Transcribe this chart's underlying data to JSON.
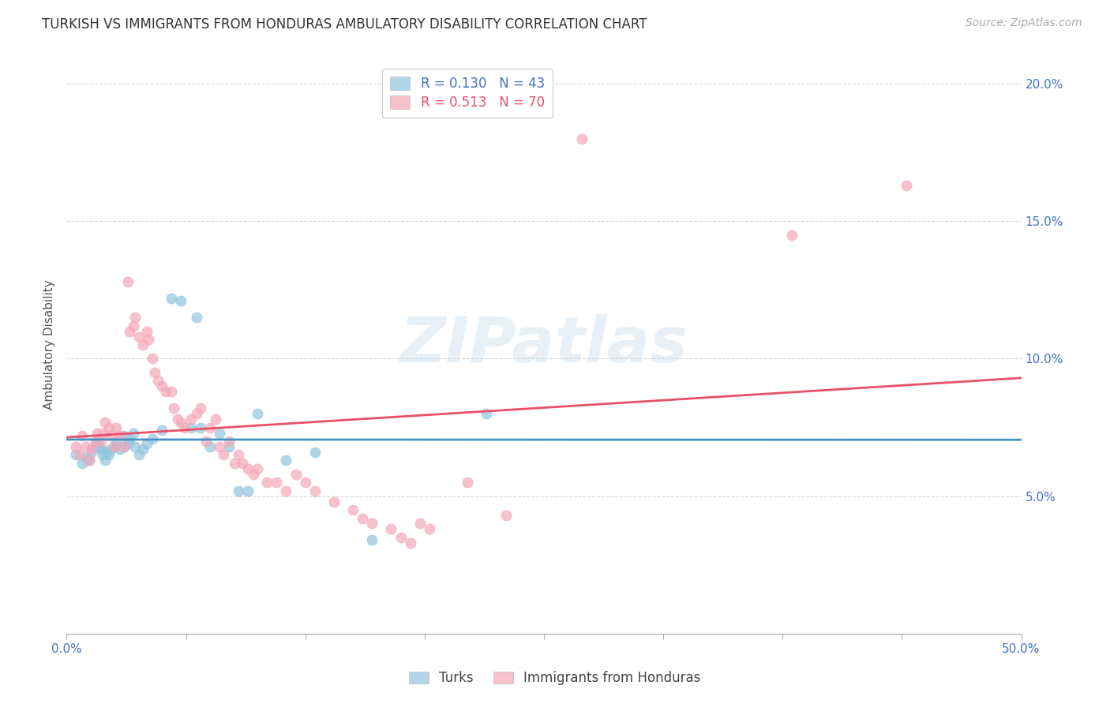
{
  "title": "TURKISH VS IMMIGRANTS FROM HONDURAS AMBULATORY DISABILITY CORRELATION CHART",
  "source": "Source: ZipAtlas.com",
  "ylabel": "Ambulatory Disability",
  "xlim": [
    0.0,
    0.5
  ],
  "ylim": [
    0.0,
    0.21
  ],
  "xticks": [
    0.0,
    0.0625,
    0.125,
    0.1875,
    0.25,
    0.3125,
    0.375,
    0.4375,
    0.5
  ],
  "yticks": [
    0.05,
    0.1,
    0.15,
    0.2
  ],
  "yticklabels": [
    "5.0%",
    "10.0%",
    "15.0%",
    "20.0%"
  ],
  "turks_R": 0.13,
  "turks_N": 43,
  "honduras_R": 0.513,
  "honduras_N": 70,
  "turk_color": "#92c5de",
  "honduras_color": "#f4a7b9",
  "turk_line_color": "#4393c3",
  "turk_line_style": "solid",
  "honduras_line_color": "#e8506a",
  "honduras_line_style": "solid",
  "turk_dash_color": "#92c5de",
  "background_color": "#ffffff",
  "grid_color": "#cccccc",
  "watermark": "ZIPatlas",
  "turks_x": [
    0.005,
    0.008,
    0.01,
    0.012,
    0.013,
    0.015,
    0.016,
    0.017,
    0.018,
    0.019,
    0.02,
    0.021,
    0.022,
    0.023,
    0.025,
    0.026,
    0.028,
    0.03,
    0.03,
    0.032,
    0.033,
    0.035,
    0.036,
    0.038,
    0.04,
    0.042,
    0.045,
    0.05,
    0.055,
    0.06,
    0.065,
    0.068,
    0.07,
    0.075,
    0.08,
    0.085,
    0.09,
    0.095,
    0.1,
    0.115,
    0.13,
    0.16,
    0.22
  ],
  "turks_y": [
    0.065,
    0.062,
    0.064,
    0.063,
    0.066,
    0.068,
    0.07,
    0.068,
    0.067,
    0.065,
    0.063,
    0.066,
    0.065,
    0.067,
    0.068,
    0.07,
    0.067,
    0.068,
    0.072,
    0.069,
    0.071,
    0.073,
    0.068,
    0.065,
    0.067,
    0.069,
    0.071,
    0.074,
    0.122,
    0.121,
    0.075,
    0.115,
    0.075,
    0.068,
    0.073,
    0.068,
    0.052,
    0.052,
    0.08,
    0.063,
    0.066,
    0.034,
    0.08
  ],
  "honduras_x": [
    0.005,
    0.007,
    0.008,
    0.01,
    0.012,
    0.013,
    0.015,
    0.016,
    0.018,
    0.019,
    0.02,
    0.022,
    0.023,
    0.025,
    0.026,
    0.028,
    0.03,
    0.032,
    0.033,
    0.035,
    0.036,
    0.038,
    0.04,
    0.042,
    0.043,
    0.045,
    0.046,
    0.048,
    0.05,
    0.052,
    0.055,
    0.056,
    0.058,
    0.06,
    0.062,
    0.065,
    0.068,
    0.07,
    0.073,
    0.075,
    0.078,
    0.08,
    0.082,
    0.085,
    0.088,
    0.09,
    0.092,
    0.095,
    0.098,
    0.1,
    0.105,
    0.11,
    0.115,
    0.12,
    0.125,
    0.13,
    0.14,
    0.15,
    0.155,
    0.16,
    0.17,
    0.175,
    0.18,
    0.185,
    0.19,
    0.21,
    0.23,
    0.27,
    0.38,
    0.44
  ],
  "honduras_y": [
    0.068,
    0.065,
    0.072,
    0.068,
    0.063,
    0.067,
    0.07,
    0.073,
    0.07,
    0.073,
    0.077,
    0.075,
    0.072,
    0.068,
    0.075,
    0.072,
    0.068,
    0.128,
    0.11,
    0.112,
    0.115,
    0.108,
    0.105,
    0.11,
    0.107,
    0.1,
    0.095,
    0.092,
    0.09,
    0.088,
    0.088,
    0.082,
    0.078,
    0.077,
    0.075,
    0.078,
    0.08,
    0.082,
    0.07,
    0.075,
    0.078,
    0.068,
    0.065,
    0.07,
    0.062,
    0.065,
    0.062,
    0.06,
    0.058,
    0.06,
    0.055,
    0.055,
    0.052,
    0.058,
    0.055,
    0.052,
    0.048,
    0.045,
    0.042,
    0.04,
    0.038,
    0.035,
    0.033,
    0.04,
    0.038,
    0.055,
    0.043,
    0.18,
    0.145,
    0.163
  ]
}
